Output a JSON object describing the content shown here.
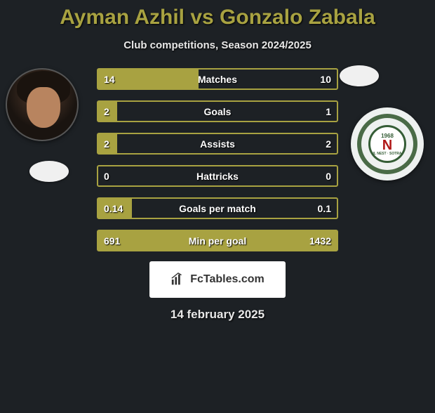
{
  "title": "Ayman Azhil vs Gonzalo Zabala",
  "subtitle": "Club competitions, Season 2024/2025",
  "date": "14 february 2025",
  "logo_text": "FcTables.com",
  "colors": {
    "accent": "#a8a241",
    "background": "#1d2125",
    "text": "#ffffff"
  },
  "badge": {
    "year": "1968",
    "letter": "N",
    "bottom_text": "IL NEST · SOTRA"
  },
  "stats": [
    {
      "label": "Matches",
      "left_value": "14",
      "right_value": "10",
      "left_fill_pct": 42,
      "right_fill_pct": 0
    },
    {
      "label": "Goals",
      "left_value": "2",
      "right_value": "1",
      "left_fill_pct": 8,
      "right_fill_pct": 0
    },
    {
      "label": "Assists",
      "left_value": "2",
      "right_value": "2",
      "left_fill_pct": 8,
      "right_fill_pct": 0
    },
    {
      "label": "Hattricks",
      "left_value": "0",
      "right_value": "0",
      "left_fill_pct": 0,
      "right_fill_pct": 0
    },
    {
      "label": "Goals per match",
      "left_value": "0.14",
      "right_value": "0.1",
      "left_fill_pct": 14,
      "right_fill_pct": 0
    },
    {
      "label": "Min per goal",
      "left_value": "691",
      "right_value": "1432",
      "left_fill_pct": 100,
      "right_fill_pct": 100
    }
  ]
}
